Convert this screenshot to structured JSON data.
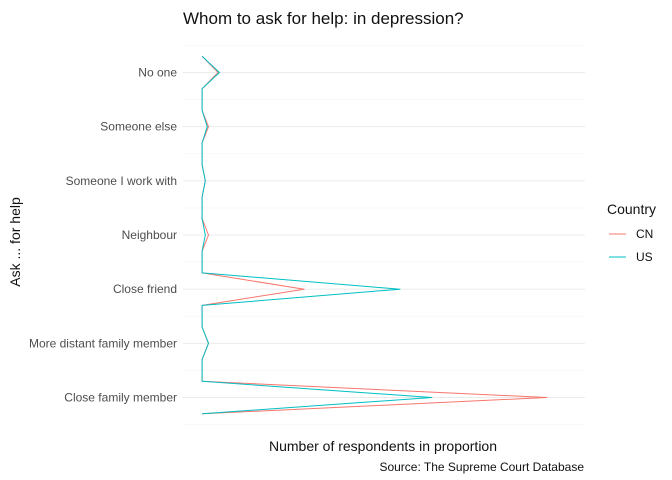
{
  "chart_data": {
    "type": "line",
    "title": "Whom to ask for help: in depression?",
    "xlabel": "Number of respondents in proportion",
    "ylabel": "Ask ... for help",
    "caption": "Source: The Supreme Court Database",
    "categories": [
      "Close family member",
      "More distant family member",
      "Close friend",
      "Neighbour",
      "Someone I work with",
      "Someone else",
      "No one"
    ],
    "xlim": [
      0,
      0.6
    ],
    "grid": true,
    "legend": {
      "title": "Country",
      "position": "right"
    },
    "series": [
      {
        "name": "CN",
        "color": "#F8766D",
        "points": [
          {
            "y": 0.7,
            "x": 0.0
          },
          {
            "y": 1.0,
            "x": 0.54
          },
          {
            "y": 1.3,
            "x": 0.0
          },
          {
            "y": 1.7,
            "x": 0.0
          },
          {
            "y": 2.0,
            "x": 0.01
          },
          {
            "y": 2.3,
            "x": 0.0
          },
          {
            "y": 2.7,
            "x": 0.0
          },
          {
            "y": 3.0,
            "x": 0.16
          },
          {
            "y": 3.3,
            "x": 0.0
          },
          {
            "y": 3.7,
            "x": 0.0
          },
          {
            "y": 4.0,
            "x": 0.01
          },
          {
            "y": 4.3,
            "x": 0.0
          },
          {
            "y": 4.7,
            "x": 0.0
          },
          {
            "y": 5.0,
            "x": 0.005
          },
          {
            "y": 5.3,
            "x": 0.0
          },
          {
            "y": 5.7,
            "x": 0.0
          },
          {
            "y": 6.0,
            "x": 0.01
          },
          {
            "y": 6.3,
            "x": 0.0
          },
          {
            "y": 6.7,
            "x": 0.0
          },
          {
            "y": 7.0,
            "x": 0.025
          },
          {
            "y": 7.3,
            "x": 0.0
          }
        ]
      },
      {
        "name": "US",
        "color": "#00BFC4",
        "points": [
          {
            "y": 0.7,
            "x": 0.0
          },
          {
            "y": 1.0,
            "x": 0.36
          },
          {
            "y": 1.3,
            "x": 0.0
          },
          {
            "y": 1.7,
            "x": 0.0
          },
          {
            "y": 2.0,
            "x": 0.01
          },
          {
            "y": 2.3,
            "x": 0.0
          },
          {
            "y": 2.7,
            "x": 0.0
          },
          {
            "y": 3.0,
            "x": 0.31
          },
          {
            "y": 3.3,
            "x": 0.0
          },
          {
            "y": 3.7,
            "x": 0.0
          },
          {
            "y": 4.0,
            "x": 0.005
          },
          {
            "y": 4.3,
            "x": 0.0
          },
          {
            "y": 4.7,
            "x": 0.0
          },
          {
            "y": 5.0,
            "x": 0.005
          },
          {
            "y": 5.3,
            "x": 0.0
          },
          {
            "y": 5.7,
            "x": 0.0
          },
          {
            "y": 6.0,
            "x": 0.008
          },
          {
            "y": 6.3,
            "x": 0.0
          },
          {
            "y": 6.7,
            "x": 0.0
          },
          {
            "y": 7.0,
            "x": 0.027
          },
          {
            "y": 7.3,
            "x": 0.0
          }
        ]
      }
    ]
  }
}
